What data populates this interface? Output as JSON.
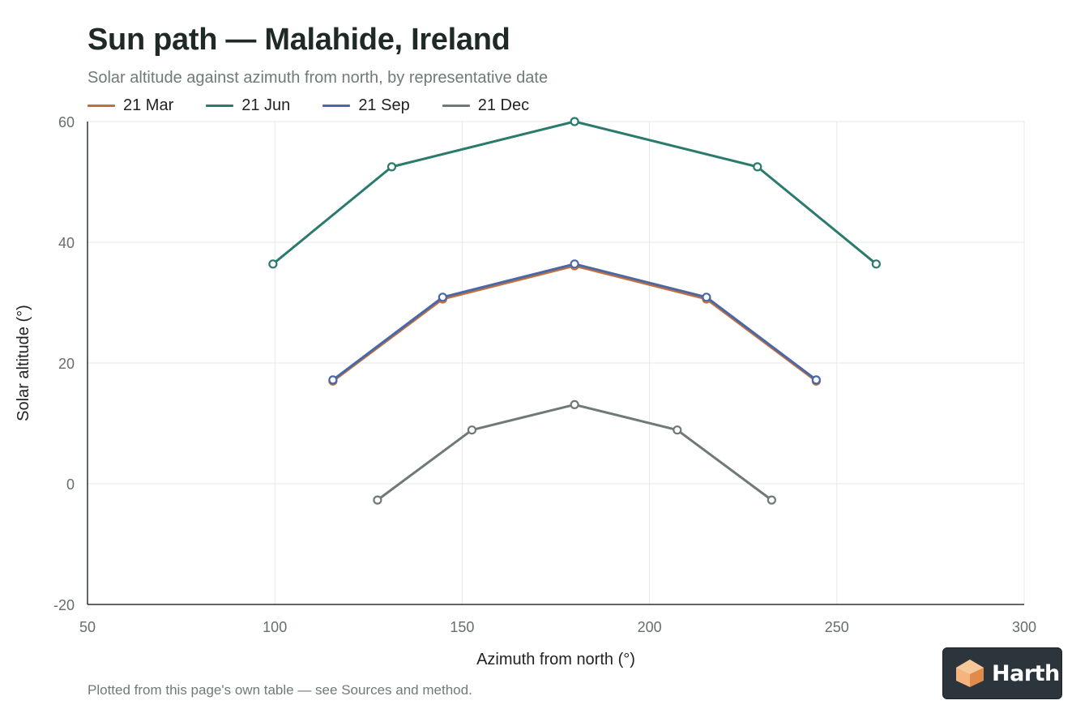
{
  "header": {
    "title": "Sun path — Malahide, Ireland",
    "subtitle": "Solar altitude against azimuth from north, by representative date"
  },
  "footnote": "Plotted from this page's own table — see Sources and method.",
  "brand": {
    "name": "Harth"
  },
  "chart_data": {
    "type": "line",
    "xlabel": "Azimuth from north (°)",
    "ylabel": "Solar altitude (°)",
    "xlim": [
      50,
      300
    ],
    "ylim": [
      -20,
      60
    ],
    "xticks": [
      50,
      100,
      150,
      200,
      250,
      300
    ],
    "yticks": [
      -20,
      0,
      20,
      40,
      60
    ],
    "grid": true,
    "legend": "top-left",
    "series": [
      {
        "name": "21 Mar",
        "color": "#c0703d",
        "x": [
          115.5,
          144.8,
          180,
          215.2,
          244.5
        ],
        "y": [
          17.0,
          30.6,
          36.1,
          30.6,
          17.0
        ]
      },
      {
        "name": "21 Jun",
        "color": "#2a7a6e",
        "x": [
          99.5,
          131.2,
          180,
          228.8,
          260.5
        ],
        "y": [
          36.4,
          52.5,
          60.0,
          52.5,
          36.4
        ]
      },
      {
        "name": "21 Sep",
        "color": "#4a67a8",
        "x": [
          115.5,
          144.8,
          180,
          215.2,
          244.5
        ],
        "y": [
          17.2,
          30.9,
          36.4,
          30.9,
          17.2
        ]
      },
      {
        "name": "21 Dec",
        "color": "#6e7a75",
        "x": [
          127.4,
          152.6,
          180,
          207.4,
          232.6
        ],
        "y": [
          -2.7,
          8.9,
          13.1,
          8.9,
          -2.7
        ]
      }
    ]
  }
}
